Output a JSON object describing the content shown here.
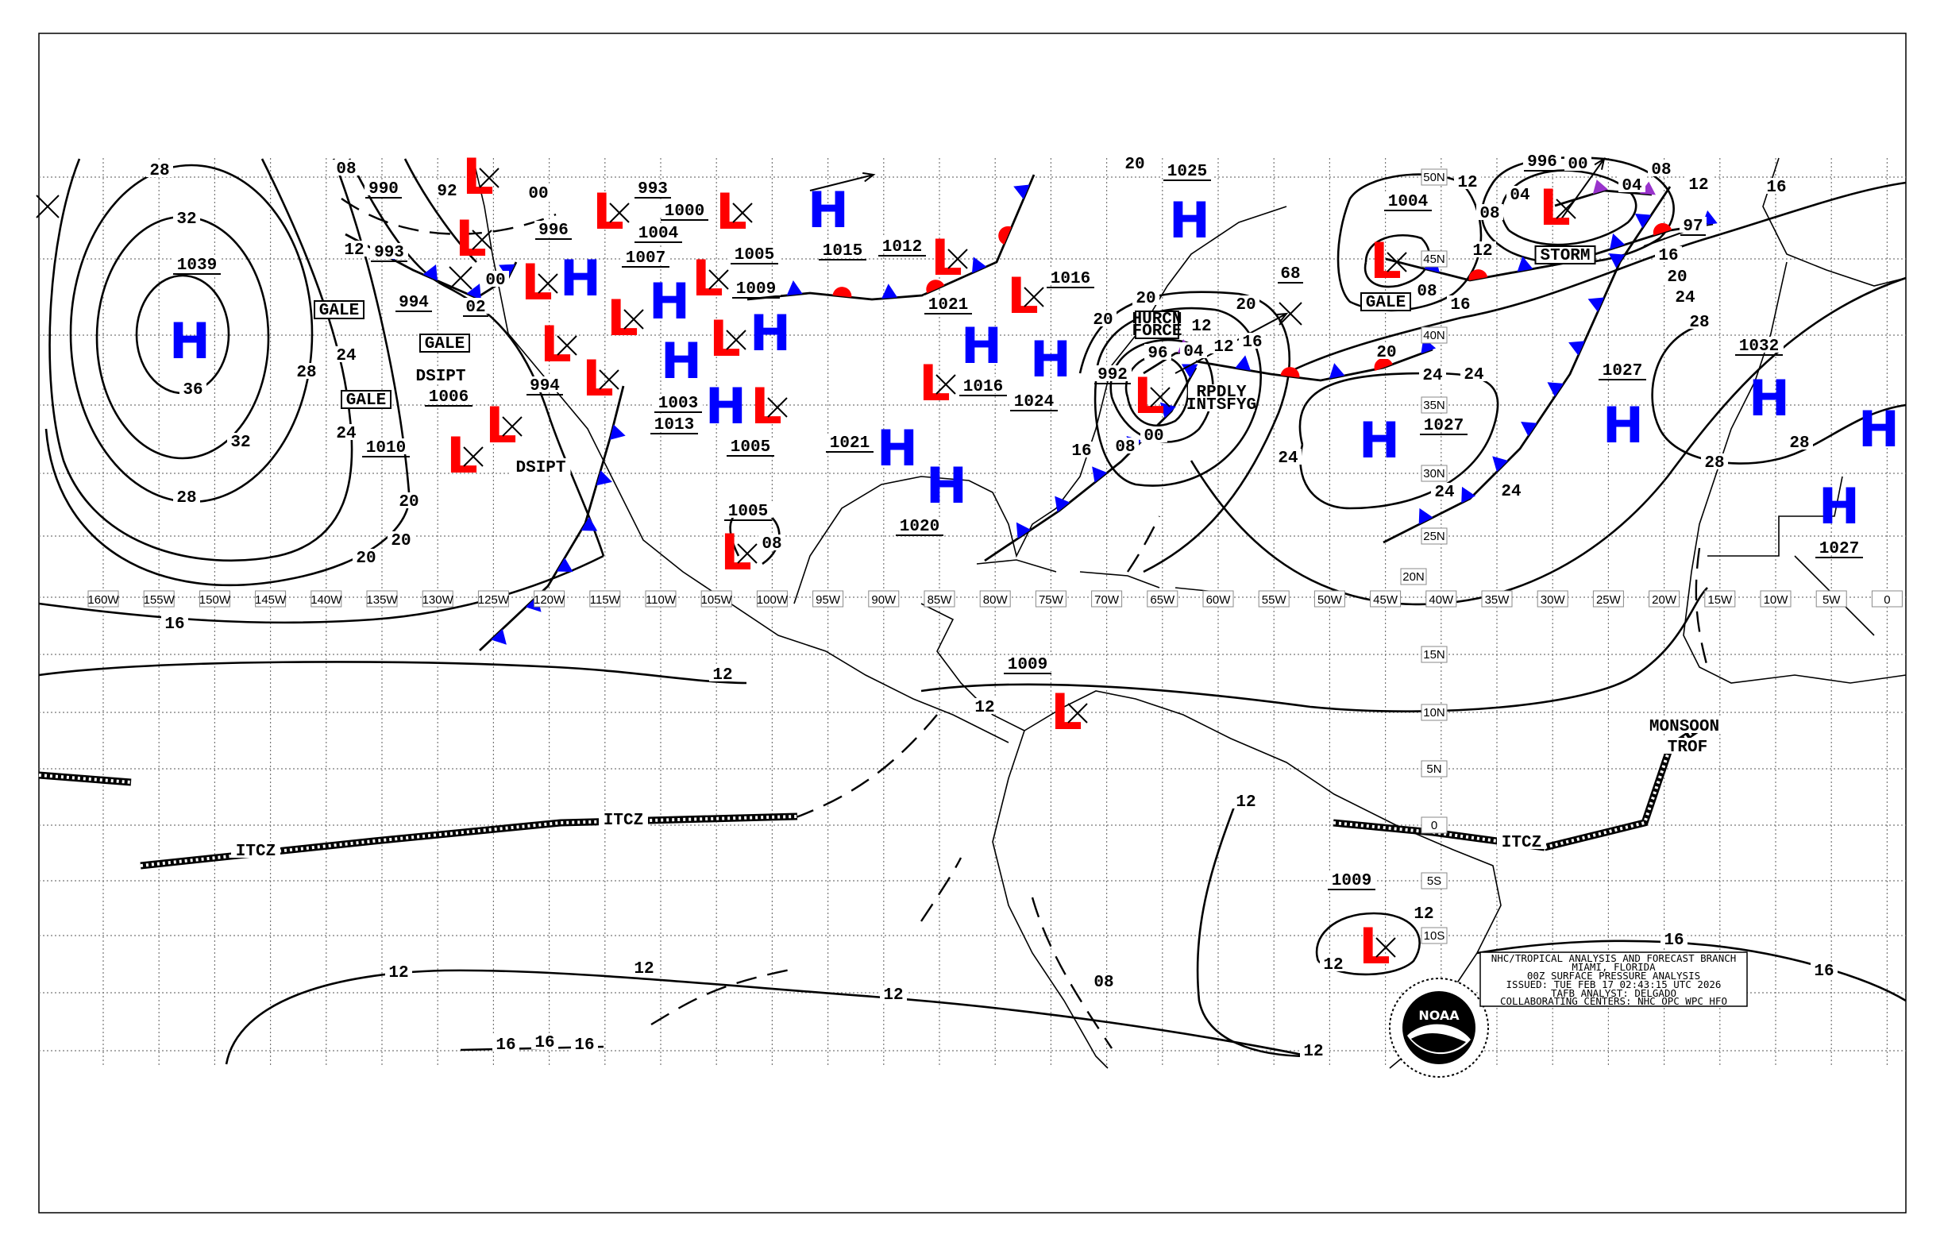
{
  "title_block": {
    "lines": [
      "NHC/TROPICAL ANALYSIS AND FORECAST BRANCH",
      "MIAMI, FLORIDA",
      "00Z SURFACE PRESSURE ANALYSIS",
      "ISSUED: TUE FEB 17 02:43:15 UTC 2026",
      "TAFB ANALYST: DELGADO",
      "COLLABORATING CENTERS: NHC OPC WPC HFO"
    ]
  },
  "logo": {
    "text": "NOAA"
  },
  "longitude_labels": [
    "160W",
    "155W",
    "150W",
    "145W",
    "140W",
    "135W",
    "130W",
    "125W",
    "120W",
    "115W",
    "110W",
    "105W",
    "100W",
    "95W",
    "90W",
    "85W",
    "80W",
    "75W",
    "70W",
    "65W",
    "60W",
    "55W",
    "50W",
    "45W",
    "40W",
    "35W",
    "30W",
    "25W",
    "20W",
    "15W",
    "10W",
    "5W",
    "0"
  ],
  "latitude_labels": [
    "50N",
    "45N",
    "40N",
    "35N",
    "30N",
    "25N",
    "20N",
    "15N",
    "10N",
    "5N",
    "0",
    "5S",
    "10S"
  ],
  "pressure_centers": [
    "H",
    "L",
    "L",
    "L",
    "L",
    "H",
    "L",
    "L",
    "L",
    "L",
    "H",
    "H",
    "L",
    "H",
    "L",
    "L",
    "L",
    "H",
    "L",
    "H",
    "H",
    "H",
    "L",
    "L",
    "H",
    "L",
    "L",
    "H",
    "H",
    "H",
    "H",
    "H",
    "L",
    "L",
    "L",
    "L"
  ],
  "isobar_labels": [
    "1039",
    "32",
    "36",
    "28",
    "28",
    "28",
    "32",
    "24",
    "24",
    "20",
    "20",
    "20",
    "16",
    "12",
    "12",
    "1009",
    "1005",
    "08",
    "990",
    "993",
    "12",
    "994",
    "02",
    "1006",
    "1010",
    "996",
    "1004",
    "97",
    "1027",
    "1032",
    "1027",
    "1027",
    "1020",
    "1021",
    "1016",
    "1024",
    "1021",
    "1016",
    "1015",
    "1012",
    "1005",
    "1009",
    "1003",
    "1005",
    "1013",
    "1007",
    "1004",
    "1000",
    "993",
    "996",
    "994",
    "1025",
    "992",
    "96",
    "00",
    "08",
    "68",
    "1009",
    "12",
    "12",
    "16",
    "16",
    "12",
    "12",
    "12",
    "16",
    "16",
    "16",
    "12",
    "08",
    "12",
    "24",
    "24",
    "24",
    "24",
    "24",
    "28",
    "28",
    "28",
    "20",
    "24",
    "16",
    "16",
    "20",
    "12",
    "12",
    "12",
    "08",
    "08",
    "04",
    "04",
    "00",
    "08",
    "16",
    "20",
    "20",
    "12",
    "12",
    "04",
    "16",
    "16",
    "20",
    "20",
    "08",
    "00",
    "92",
    "00"
  ],
  "annotations": {
    "gale": [
      "GALE",
      "GALE",
      "GALE",
      "GALE"
    ],
    "dsipt": [
      "DSIPT",
      "DSIPT"
    ],
    "itcz": [
      "ITCZ",
      "ITCZ",
      "ITCZ"
    ],
    "monsoon": [
      "MONSOON",
      "TROF"
    ],
    "hurricane_force": [
      "HURCN",
      "FORCE"
    ],
    "rapidly_intensifying": [
      "RPDLY",
      "INTSFYG"
    ],
    "storm": "STORM"
  },
  "colors": {
    "high": "#0000ff",
    "low": "#ff0000",
    "cold_front": "#0000ff",
    "warm_front": "#ff0000",
    "occluded_front": "#9933cc"
  }
}
